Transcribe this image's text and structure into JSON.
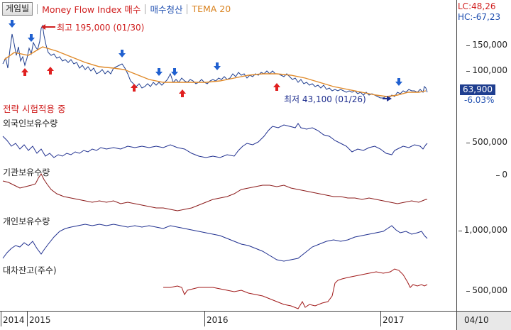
{
  "legend": {
    "game_button": "게임빌",
    "mfi": "Money Flow Index 매수",
    "signal": "매수청산",
    "tema": "TEMA 20"
  },
  "indicators": {
    "lc": "LC:48,26",
    "hc": "HC:-67,23"
  },
  "price": {
    "current": "63,900",
    "change": "-6.03%",
    "high_note": "최고 195,000 (01/30)",
    "low_note": "최저 43,100 (01/26)",
    "strategy": "전략 시험적용 중",
    "ticks": [
      "150,000",
      "100,000"
    ]
  },
  "panes": [
    {
      "title": "외국인보유수량",
      "tick": "500,000"
    },
    {
      "title": "기관보유수량",
      "tick": "0"
    },
    {
      "title": "개인보유수량",
      "tick": "1,000,000"
    },
    {
      "title": "대차잔고(주수)",
      "tick": "500,000"
    }
  ],
  "xaxis": [
    "2014",
    "2015",
    "2016",
    "2017"
  ],
  "date": "04/10",
  "colors": {
    "price": "#1f3e8f",
    "tema": "#e08a2a",
    "up": "#e02020",
    "down": "#2060d0",
    "foreign": "#1f2f8f",
    "inst": "#8b1a1a",
    "indiv": "#1f2f8f",
    "loan": "#a01818"
  }
}
